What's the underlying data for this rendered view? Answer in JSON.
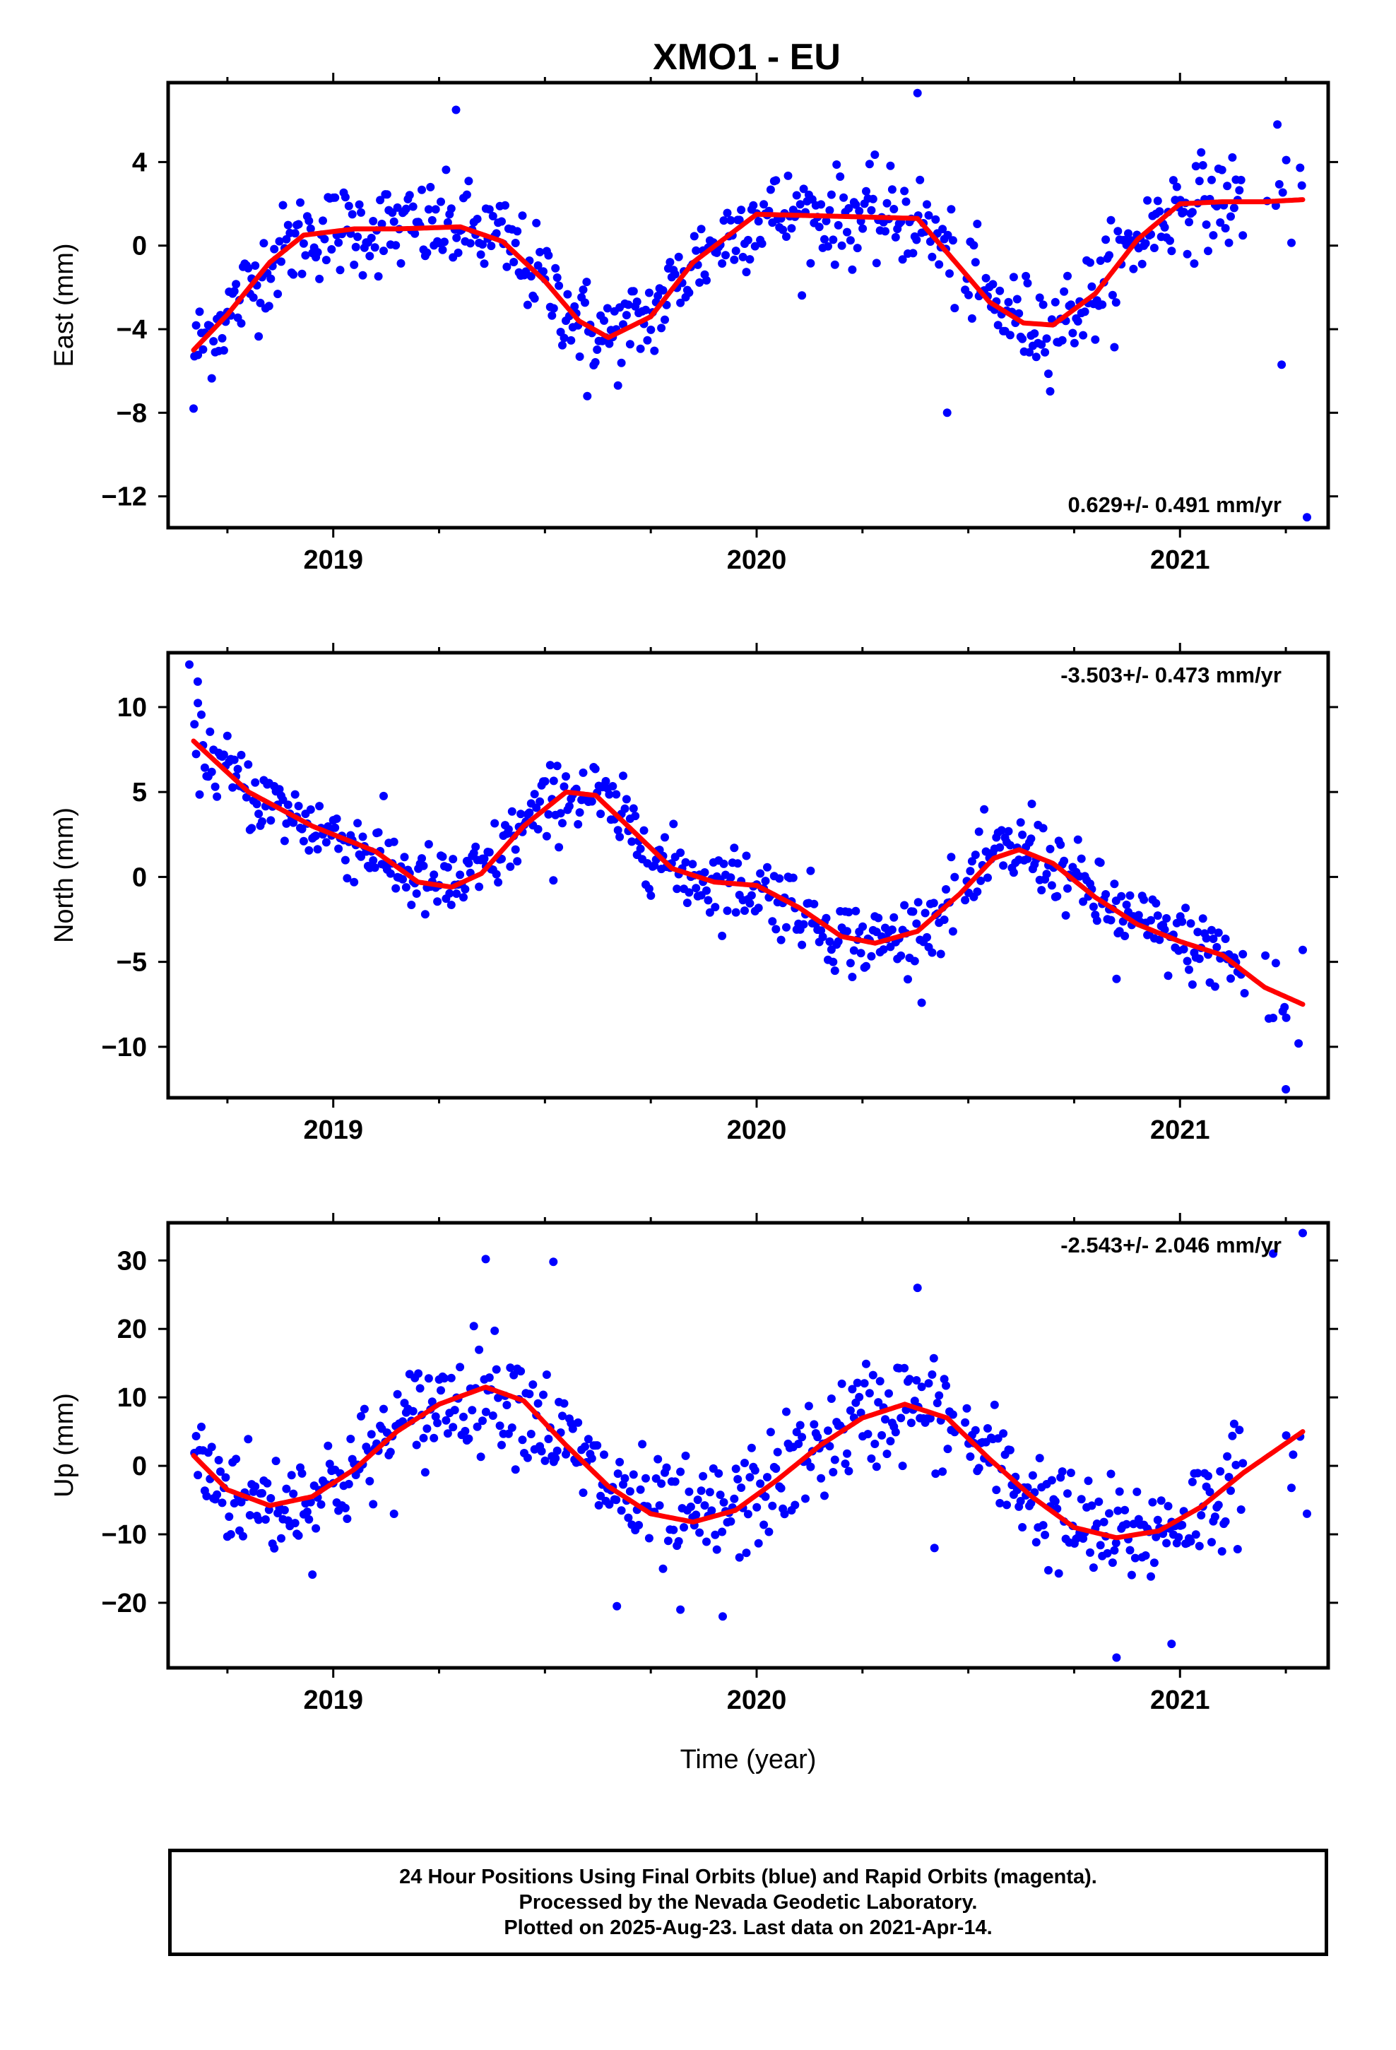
{
  "title": "XMO1 - EU",
  "xlabel": "Time (year)",
  "colors": {
    "points": "#0000ff",
    "fit": "#ff0000",
    "axis": "#000000"
  },
  "footer": {
    "line1": "24 Hour Positions Using Final Orbits (blue) and Rapid Orbits (magenta).",
    "line2": "Processed by the Nevada Geodetic Laboratory.",
    "line3": "Plotted on 2025-Aug-23. Last data on 2021-Apr-14."
  },
  "chart_data": [
    {
      "type": "scatter",
      "ylabel": "East (mm)",
      "rate_label": "0.629+/- 0.491 mm/yr",
      "xlim": [
        2018.61,
        2021.35
      ],
      "ylim": [
        -13.5,
        7.8
      ],
      "xticks": [
        2019,
        2020,
        2021
      ],
      "yticks": [
        -12,
        -8,
        -4,
        0,
        4
      ],
      "amplitude": 3.6,
      "noise": 1.1,
      "series": [
        {
          "kind": "fit",
          "x": [
            2018.67,
            2018.75,
            2018.85,
            2018.93,
            2019.05,
            2019.15,
            2019.3,
            2019.4,
            2019.5,
            2019.58,
            2019.65,
            2019.75,
            2019.85,
            2020.0,
            2020.2,
            2020.38,
            2020.47,
            2020.55,
            2020.63,
            2020.7,
            2020.8,
            2020.9,
            2021.0,
            2021.1,
            2021.2,
            2021.29
          ],
          "y": [
            -5.0,
            -3.3,
            -0.8,
            0.5,
            0.8,
            0.8,
            0.9,
            0.2,
            -1.7,
            -3.6,
            -4.4,
            -3.4,
            -0.8,
            1.5,
            1.4,
            1.3,
            -0.8,
            -2.7,
            -3.7,
            -3.8,
            -2.3,
            0.3,
            2.0,
            2.1,
            2.1,
            2.2
          ]
        },
        {
          "kind": "outliers",
          "x": [
            2018.67,
            2019.29,
            2019.6,
            2020.45,
            2020.38,
            2021.23,
            2021.24,
            2021.3
          ],
          "y": [
            -7.8,
            6.5,
            -7.2,
            -8.0,
            7.3,
            5.8,
            -5.7,
            -13.0
          ]
        }
      ]
    },
    {
      "type": "scatter",
      "ylabel": "North (mm)",
      "rate_label": "-3.503+/- 0.473 mm/yr",
      "xlim": [
        2018.61,
        2021.35
      ],
      "ylim": [
        -13.0,
        13.2
      ],
      "xticks": [
        2019,
        2020,
        2021
      ],
      "yticks": [
        -10,
        -5,
        0,
        5,
        10
      ],
      "amplitude": 3.6,
      "noise": 1.1,
      "series": [
        {
          "kind": "fit",
          "x": [
            2018.67,
            2018.8,
            2018.95,
            2019.1,
            2019.2,
            2019.28,
            2019.35,
            2019.45,
            2019.55,
            2019.62,
            2019.7,
            2019.8,
            2019.9,
            2020.0,
            2020.1,
            2020.2,
            2020.28,
            2020.38,
            2020.48,
            2020.56,
            2020.62,
            2020.7,
            2020.8,
            2020.9,
            2021.0,
            2021.1,
            2021.2,
            2021.29
          ],
          "y": [
            8.0,
            5.0,
            3.0,
            1.5,
            -0.3,
            -0.6,
            0.2,
            3.0,
            5.0,
            4.8,
            2.9,
            0.5,
            -0.3,
            -0.5,
            -1.8,
            -3.5,
            -3.9,
            -3.2,
            -1.0,
            1.1,
            1.6,
            0.8,
            -1.2,
            -2.8,
            -3.8,
            -4.6,
            -6.5,
            -7.5
          ]
        },
        {
          "kind": "outliers",
          "x": [
            2018.66,
            2018.68,
            2019.52,
            2020.65,
            2020.85,
            2021.22,
            2021.25,
            2021.28,
            2021.29
          ],
          "y": [
            12.5,
            11.5,
            -0.2,
            4.3,
            -6.0,
            -8.3,
            -12.5,
            -9.8,
            -4.3
          ]
        }
      ]
    },
    {
      "type": "scatter",
      "ylabel": "Up (mm)",
      "rate_label": "-2.543+/- 2.046 mm/yr",
      "xlim": [
        2018.61,
        2021.35
      ],
      "ylim": [
        -29.5,
        35.5
      ],
      "xticks": [
        2019,
        2020,
        2021
      ],
      "yticks": [
        -20,
        -10,
        0,
        10,
        20,
        30
      ],
      "amplitude": 8.0,
      "noise": 4.0,
      "series": [
        {
          "kind": "fit",
          "x": [
            2018.67,
            2018.75,
            2018.85,
            2018.95,
            2019.05,
            2019.15,
            2019.25,
            2019.36,
            2019.45,
            2019.55,
            2019.65,
            2019.75,
            2019.85,
            2019.95,
            2020.05,
            2020.15,
            2020.25,
            2020.35,
            2020.45,
            2020.55,
            2020.65,
            2020.75,
            2020.85,
            2020.95,
            2021.05,
            2021.15,
            2021.29
          ],
          "y": [
            1.5,
            -3.5,
            -5.8,
            -4.5,
            -0.5,
            5.0,
            9.0,
            11.5,
            9.5,
            3.0,
            -3.0,
            -7.0,
            -8.2,
            -6.5,
            -2.0,
            3.0,
            7.0,
            9.0,
            7.0,
            1.0,
            -4.5,
            -9.0,
            -10.5,
            -9.5,
            -6.0,
            -1.0,
            5.0
          ]
        },
        {
          "kind": "outliers",
          "x": [
            2019.36,
            2019.52,
            2019.67,
            2019.82,
            2019.92,
            2020.42,
            2020.38,
            2020.85,
            2020.98,
            2021.22,
            2021.29,
            2021.3
          ],
          "y": [
            30.2,
            29.8,
            -20.5,
            -21.0,
            -22.0,
            -12.0,
            26.0,
            -28.0,
            -26.0,
            31.0,
            34.0,
            -7.0
          ]
        }
      ]
    }
  ]
}
